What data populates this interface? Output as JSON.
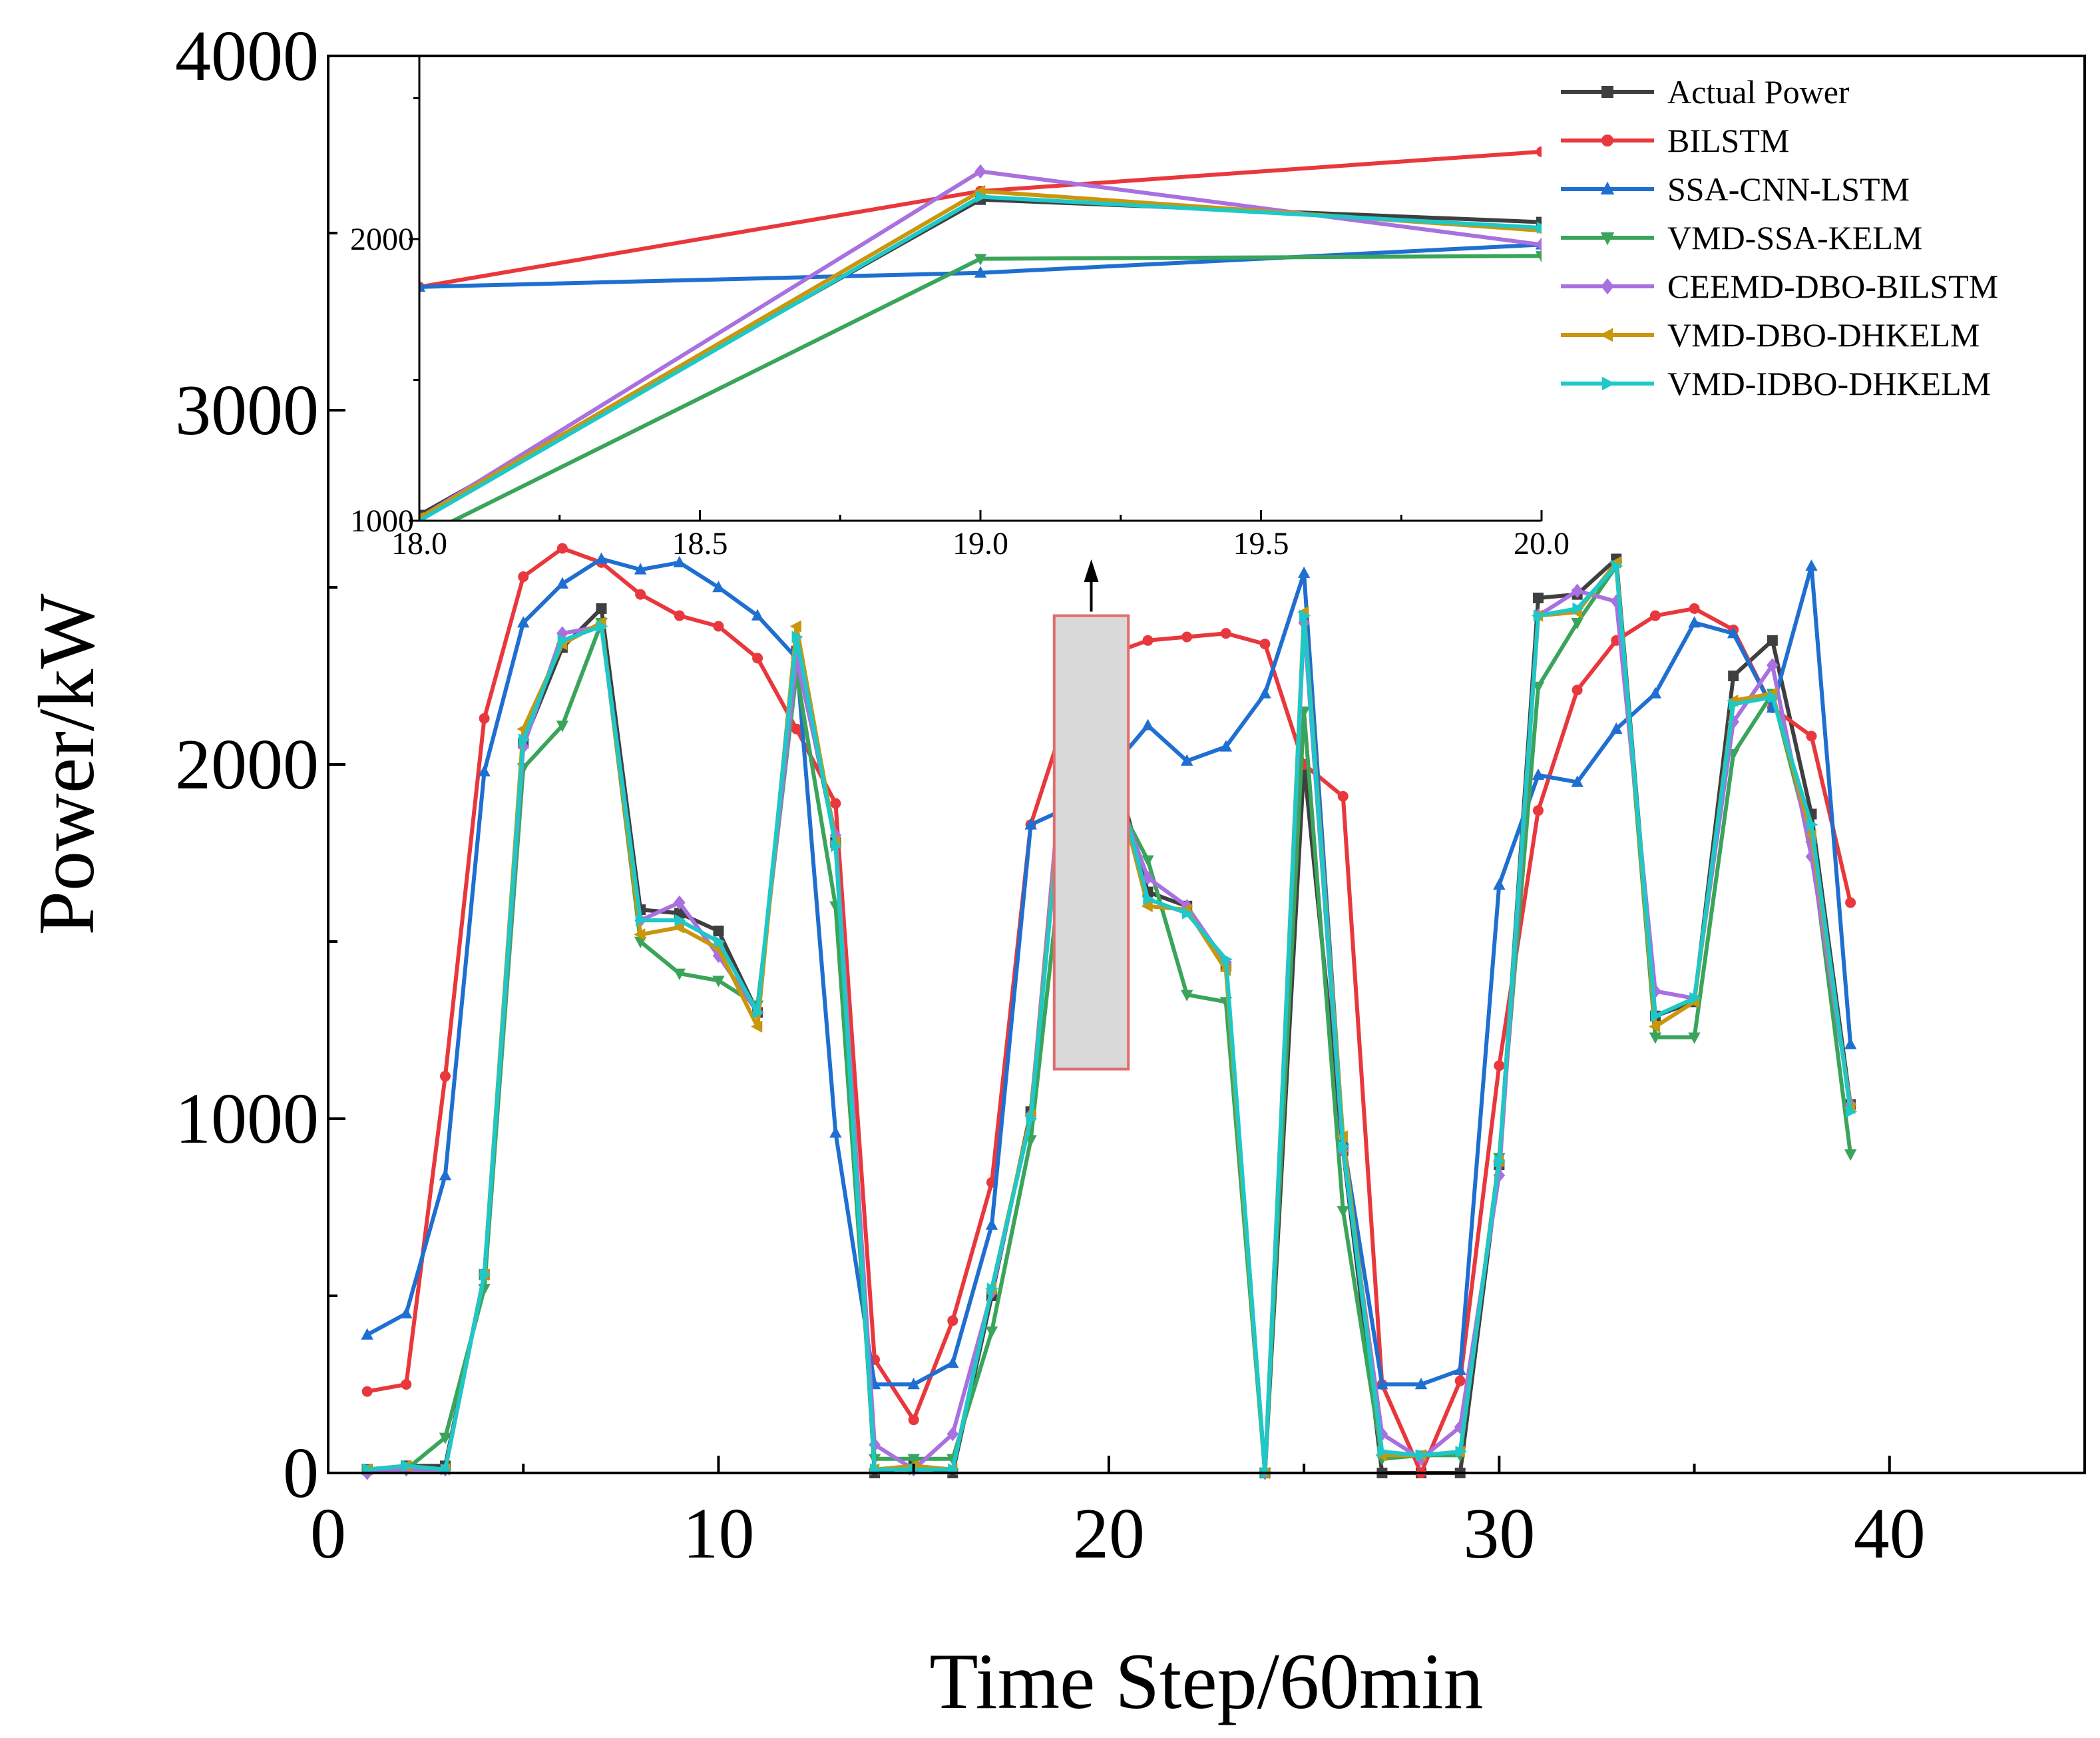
{
  "chart_data": {
    "type": "line",
    "title": "",
    "xlabel": "Time Step/60min",
    "ylabel": "Power/kW",
    "xlim": [
      0,
      45
    ],
    "ylim": [
      0,
      4000
    ],
    "xticks": [
      0,
      10,
      20,
      30,
      40
    ],
    "yticks": [
      0,
      1000,
      2000,
      3000,
      4000
    ],
    "x": [
      1,
      2,
      3,
      4,
      5,
      6,
      7,
      8,
      9,
      10,
      11,
      12,
      13,
      14,
      15,
      16,
      17,
      18,
      19,
      20,
      21,
      22,
      23,
      24,
      25,
      26,
      27,
      28,
      29,
      30,
      31,
      32,
      33,
      34,
      35,
      36,
      37,
      38,
      39
    ],
    "series": [
      {
        "name": "Actual Power",
        "color": "#3f3f3f",
        "marker": "square",
        "values": [
          10,
          20,
          20,
          560,
          2060,
          2330,
          2440,
          1590,
          1580,
          1530,
          1300,
          2320,
          1780,
          0,
          20,
          0,
          500,
          1020,
          2140,
          2060,
          1640,
          1600,
          1430,
          0,
          2000,
          910,
          0,
          0,
          0,
          870,
          2470,
          2480,
          2580,
          1290,
          1330,
          2250,
          2350,
          1860,
          1040
        ]
      },
      {
        "name": "BILSTM",
        "color": "#e8383d",
        "marker": "circle",
        "values": [
          230,
          250,
          1120,
          2130,
          2530,
          2610,
          2570,
          2480,
          2420,
          2390,
          2300,
          2100,
          1890,
          320,
          150,
          430,
          820,
          1830,
          2170,
          2310,
          2350,
          2360,
          2370,
          2340,
          2000,
          1910,
          250,
          0,
          260,
          1150,
          1870,
          2210,
          2350,
          2420,
          2440,
          2380,
          2160,
          2080,
          1610
        ]
      },
      {
        "name": "SSA-CNN-LSTM",
        "color": "#1f6fd1",
        "marker": "triangle-up",
        "values": [
          390,
          450,
          840,
          1980,
          2400,
          2510,
          2580,
          2550,
          2570,
          2500,
          2420,
          2300,
          960,
          250,
          250,
          310,
          700,
          1830,
          1880,
          1980,
          2110,
          2010,
          2050,
          2200,
          2540,
          940,
          250,
          250,
          290,
          1660,
          1970,
          1950,
          2100,
          2200,
          2400,
          2370,
          2160,
          2560,
          1210
        ]
      },
      {
        "name": "VMD-SSA-KELM",
        "color": "#3aa55a",
        "marker": "triangle-down",
        "values": [
          10,
          10,
          100,
          520,
          1990,
          2110,
          2400,
          1500,
          1410,
          1390,
          1320,
          2260,
          1600,
          40,
          40,
          40,
          400,
          940,
          1930,
          1940,
          1730,
          1350,
          1330,
          0,
          2150,
          740,
          40,
          50,
          50,
          890,
          2220,
          2400,
          2560,
          1230,
          1230,
          2030,
          2200,
          1770,
          900
        ]
      },
      {
        "name": "CEEMD-DBO-BILSTM",
        "color": "#a970e0",
        "marker": "diamond",
        "values": [
          0,
          10,
          10,
          560,
          2050,
          2370,
          2390,
          1560,
          1610,
          1460,
          1300,
          2300,
          1800,
          80,
          10,
          110,
          510,
          1010,
          2240,
          1980,
          1680,
          1600,
          1440,
          0,
          2400,
          910,
          110,
          40,
          130,
          840,
          2420,
          2490,
          2460,
          1360,
          1340,
          2120,
          2280,
          1740,
          1040
        ]
      },
      {
        "name": "VMD-DBO-DHKELM",
        "color": "#c9960c",
        "marker": "tri-left",
        "values": [
          10,
          20,
          10,
          560,
          2100,
          2340,
          2400,
          1520,
          1540,
          1480,
          1260,
          2390,
          1780,
          10,
          20,
          10,
          520,
          1010,
          2170,
          2030,
          1600,
          1590,
          1420,
          0,
          2430,
          950,
          50,
          50,
          60,
          880,
          2420,
          2430,
          2570,
          1260,
          1330,
          2180,
          2200,
          1800,
          1030
        ]
      },
      {
        "name": "VMD-IDBO-DHKELM",
        "color": "#1ec8c8",
        "marker": "tri-right",
        "values": [
          10,
          20,
          10,
          560,
          2070,
          2350,
          2390,
          1560,
          1560,
          1500,
          1300,
          2360,
          1770,
          10,
          10,
          10,
          520,
          1000,
          2150,
          2040,
          1620,
          1580,
          1450,
          0,
          2420,
          920,
          60,
          50,
          60,
          880,
          2420,
          2440,
          2560,
          1290,
          1340,
          2170,
          2190,
          1830,
          1020
        ]
      }
    ],
    "inset": {
      "xlim": [
        18.0,
        20.0
      ],
      "ylim": [
        1000,
        2650
      ],
      "xticks": [
        18.0,
        18.5,
        19.0,
        19.5,
        20.0
      ],
      "xtick_labels": [
        "18.0",
        "18.5",
        "19.0",
        "19.5",
        "20.0"
      ],
      "yticks": [
        1000,
        2000
      ],
      "ytick_labels": [
        "1000",
        "2000"
      ],
      "zoom_region": {
        "xmin": 18.6,
        "xmax": 20.5,
        "ymin": 1140,
        "ymax": 2420
      }
    }
  }
}
